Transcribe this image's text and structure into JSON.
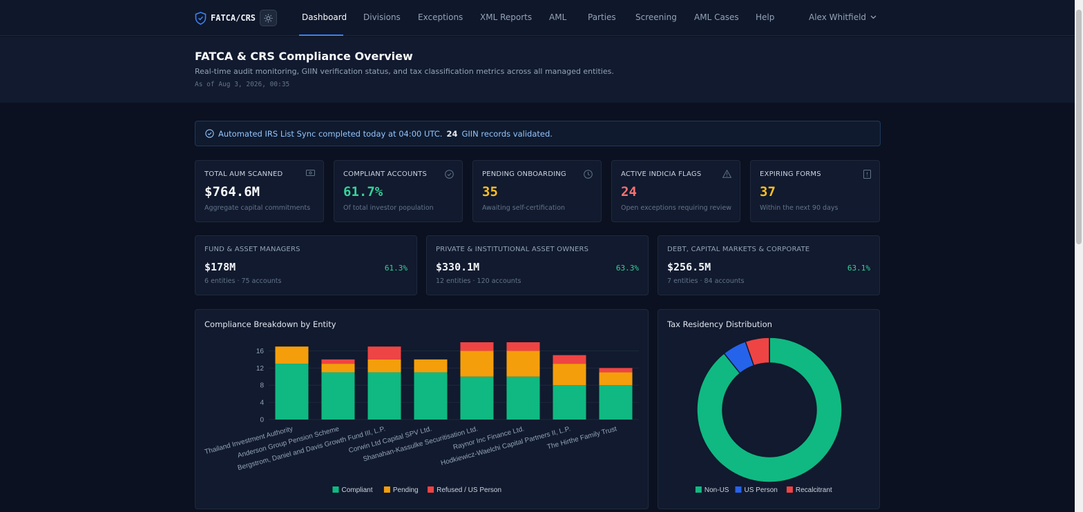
{
  "nav": {
    "brand": "FATCA/CRS",
    "items": [
      "Dashboard",
      "Divisions",
      "Exceptions",
      "XML Reports",
      "AML",
      "Parties",
      "Screening",
      "AML Cases",
      "Help"
    ],
    "user": "Alex Whitfield"
  },
  "header": {
    "title": "FATCA & CRS Compliance Overview",
    "subtitle": "Real-time audit monitoring, GIIN verification status, and tax classification metrics across all managed entities.",
    "as_of": "As of Aug 3, 2026, 00:35"
  },
  "alert": {
    "text_before": "Automated IRS List Sync completed today at 04:00 UTC.",
    "count": "24",
    "text_after": "GIIN records validated."
  },
  "kpis": [
    {
      "label": "TOTAL AUM SCANNED",
      "value": "$764.6M",
      "desc": "Aggregate capital commitments",
      "color": "#f8fafc",
      "icon": "money-icon"
    },
    {
      "label": "COMPLIANT ACCOUNTS",
      "value": "61.7%",
      "desc": "Of total investor population",
      "color": "#34d399",
      "icon": "check-circle-icon"
    },
    {
      "label": "PENDING ONBOARDING",
      "value": "35",
      "desc": "Awaiting self-certification",
      "color": "#fbbf24",
      "icon": "clock-icon"
    },
    {
      "label": "ACTIVE INDICIA FLAGS",
      "value": "24",
      "desc": "Open exceptions requiring review",
      "color": "#f87171",
      "icon": "warning-icon"
    },
    {
      "label": "EXPIRING FORMS",
      "value": "37",
      "desc": "Within the next 90 days",
      "color": "#fbbf24",
      "icon": "document-icon"
    }
  ],
  "segments": [
    {
      "label": "FUND & ASSET MANAGERS",
      "value": "$178M",
      "pct": "61.3%",
      "desc": "6 entities · 75 accounts"
    },
    {
      "label": "PRIVATE & INSTITUTIONAL ASSET OWNERS",
      "value": "$330.1M",
      "pct": "63.3%",
      "desc": "12 entities · 120 accounts"
    },
    {
      "label": "DEBT, CAPITAL MARKETS & CORPORATE",
      "value": "$256.5M",
      "pct": "63.1%",
      "desc": "7 entities · 84 accounts"
    }
  ],
  "colors": {
    "compliant": "#10b981",
    "pending": "#f59e0b",
    "refused": "#ef4444",
    "us_person": "#2563eb"
  },
  "chart_data": [
    {
      "type": "bar",
      "title": "Compliance Breakdown by Entity",
      "stacked": true,
      "categories": [
        "Thailand Investment Authority",
        "Anderson Group Pension Scheme",
        "Bergstrom, Daniel and Davis Growth Fund III, L.P.",
        "Corwin Ltd Capital SPV Ltd.",
        "Shanahan-Kassulke Securitisation Ltd.",
        "Raynor Inc Finance Ltd.",
        "Hodkiewicz-Waelchi Capital Partners II, L.P.",
        "The Hirthe Family Trust"
      ],
      "series": [
        {
          "name": "Compliant",
          "values": [
            13,
            11,
            11,
            11,
            10,
            10,
            8,
            8
          ]
        },
        {
          "name": "Pending",
          "values": [
            4,
            2,
            3,
            3,
            6,
            6,
            5,
            3
          ]
        },
        {
          "name": "Refused / US Person",
          "values": [
            0,
            1,
            3,
            0,
            2,
            2,
            2,
            1
          ]
        }
      ],
      "ylim": [
        0,
        18
      ],
      "yticks": [
        0,
        4,
        8,
        12,
        16
      ],
      "grid": true,
      "legend": "bottom"
    },
    {
      "type": "pie",
      "title": "Tax Residency Distribution",
      "donut": true,
      "labels": [
        "Non-US",
        "US Person",
        "Recalcitrant"
      ],
      "values": [
        249,
        15,
        15
      ],
      "legend": "bottom"
    }
  ]
}
